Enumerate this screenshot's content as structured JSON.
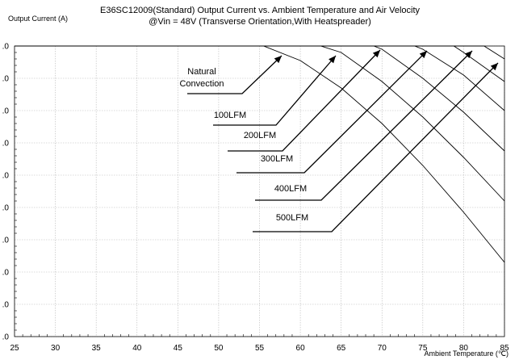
{
  "chart_data": {
    "type": "line",
    "title": "E36SC12009(Standard)  Output Current vs. Ambient Temperature and Air Velocity",
    "subtitle": "@Vin = 48V (Transverse Orientation,With Heatspreader)",
    "ylabel": "Output Current (A)",
    "xlabel": "Ambient Temperature (℃)",
    "xlim": [
      25,
      85
    ],
    "ylim": [
      0,
      9
    ],
    "x_ticks": [
      "25",
      "30",
      "35",
      "40",
      "45",
      "50",
      "55",
      "60",
      "65",
      "70",
      "75",
      "80",
      "85"
    ],
    "y_ticks": [
      ".0",
      ".0",
      ".0",
      ".0",
      ".0",
      ".0",
      ".0",
      ".0",
      ".0",
      ".0"
    ],
    "grid": true,
    "series": [
      {
        "name": "Natural Convection",
        "x": [
          25,
          55.5,
          60,
          65,
          70,
          75,
          80,
          85
        ],
        "y": [
          9.0,
          9.0,
          8.55,
          7.7,
          6.6,
          5.3,
          3.85,
          2.3
        ]
      },
      {
        "name": "100LFM",
        "x": [
          25,
          62.5,
          65,
          70,
          75,
          80,
          85
        ],
        "y": [
          9.0,
          9.0,
          8.8,
          7.9,
          6.8,
          5.55,
          4.2
        ]
      },
      {
        "name": "200LFM",
        "x": [
          25,
          69,
          70,
          75,
          80,
          85
        ],
        "y": [
          9.0,
          9.0,
          8.9,
          8.0,
          6.95,
          5.75
        ]
      },
      {
        "name": "300LFM",
        "x": [
          25,
          74,
          75,
          80,
          85
        ],
        "y": [
          9.0,
          9.0,
          8.9,
          8.1,
          7.0
        ]
      },
      {
        "name": "400LFM",
        "x": [
          25,
          78.8,
          80,
          85
        ],
        "y": [
          9.0,
          9.0,
          8.8,
          7.9
        ]
      },
      {
        "name": "500LFM",
        "x": [
          25,
          82.5,
          85
        ],
        "y": [
          9.0,
          9.0,
          8.6
        ]
      }
    ],
    "annotations": [
      {
        "text": [
          "Natural",
          "Convection"
        ],
        "series": "Natural Convection"
      },
      {
        "text": [
          "100LFM"
        ],
        "series": "100LFM"
      },
      {
        "text": [
          "200LFM"
        ],
        "series": "200LFM"
      },
      {
        "text": [
          "300LFM"
        ],
        "series": "300LFM"
      },
      {
        "text": [
          "400LFM"
        ],
        "series": "400LFM"
      },
      {
        "text": [
          "500LFM"
        ],
        "series": "500LFM"
      }
    ]
  }
}
